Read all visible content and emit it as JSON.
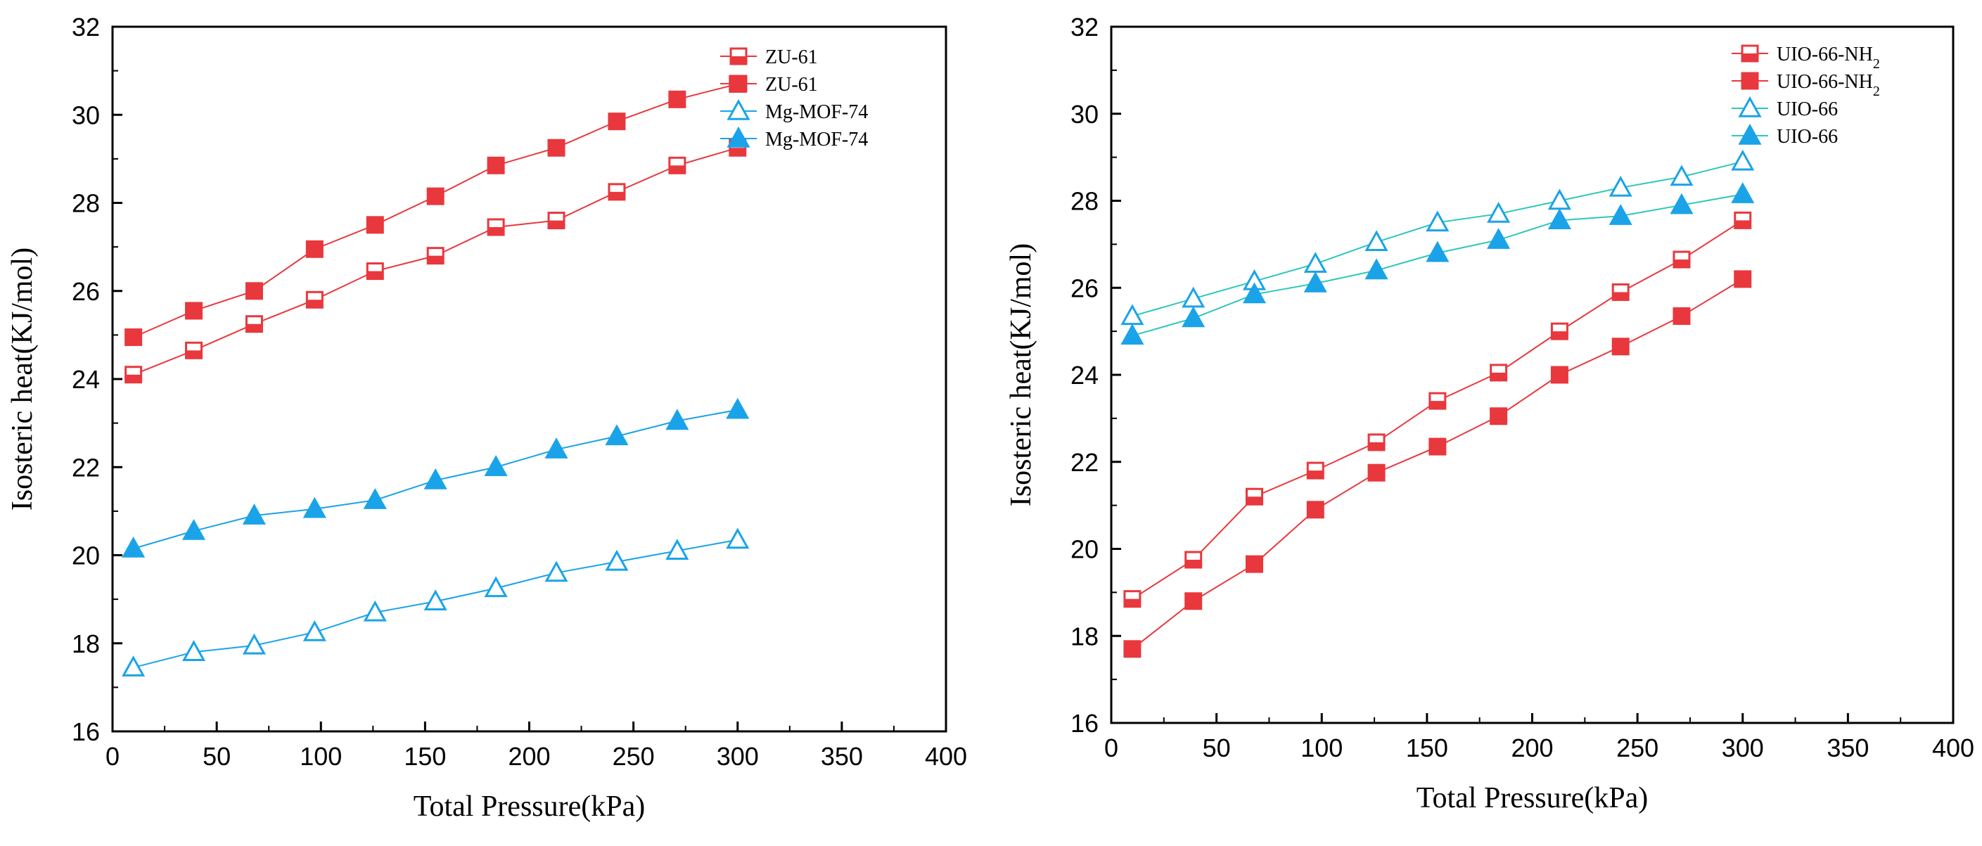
{
  "chart_data": [
    {
      "type": "line",
      "xlabel": "Total Pressure(kPa)",
      "ylabel": "Isosteric heat(KJ/mol)",
      "xlim": [
        0,
        400
      ],
      "ylim": [
        16,
        32
      ],
      "xticks": [
        0,
        50,
        100,
        150,
        200,
        250,
        300,
        350,
        400
      ],
      "yticks": [
        16,
        18,
        20,
        22,
        24,
        26,
        28,
        30,
        32
      ],
      "grid": false,
      "legend_position": "top-right",
      "x": [
        10,
        39,
        68,
        97,
        126,
        155,
        184,
        213,
        242,
        271,
        300
      ],
      "series": [
        {
          "name": "ZU-61",
          "marker": "square-half",
          "color": "#e8383d",
          "values": [
            24.1,
            24.65,
            25.25,
            25.8,
            26.45,
            26.8,
            27.45,
            27.6,
            28.25,
            28.85,
            29.25
          ]
        },
        {
          "name": "ZU-61",
          "marker": "square",
          "color": "#e8383d",
          "values": [
            24.95,
            25.55,
            26.0,
            26.95,
            27.5,
            28.15,
            28.85,
            29.25,
            29.85,
            30.35,
            30.7
          ]
        },
        {
          "name": "Mg-MOF-74",
          "marker": "triangle-open",
          "color": "#1aa3e8",
          "values": [
            17.45,
            17.8,
            17.95,
            18.25,
            18.7,
            18.95,
            19.25,
            19.6,
            19.85,
            20.1,
            20.35
          ]
        },
        {
          "name": "Mg-MOF-74",
          "marker": "triangle",
          "color": "#1aa3e8",
          "values": [
            20.15,
            20.55,
            20.9,
            21.05,
            21.25,
            21.7,
            22.0,
            22.4,
            22.7,
            23.05,
            23.3
          ]
        }
      ]
    },
    {
      "type": "line",
      "xlabel": "Total Pressure(kPa)",
      "ylabel": "Isosteric heat(KJ/mol)",
      "xlim": [
        0,
        400
      ],
      "ylim": [
        16,
        32
      ],
      "xticks": [
        0,
        50,
        100,
        150,
        200,
        250,
        300,
        350,
        400
      ],
      "yticks": [
        16,
        18,
        20,
        22,
        24,
        26,
        28,
        30,
        32
      ],
      "grid": false,
      "legend_position": "top-right",
      "x": [
        10,
        39,
        68,
        97,
        126,
        155,
        184,
        213,
        242,
        271,
        300
      ],
      "series": [
        {
          "name": "UIO-66-NH",
          "name_sub": "2",
          "marker": "square-half",
          "color": "#e8383d",
          "values": [
            18.85,
            19.75,
            21.2,
            21.8,
            22.45,
            23.4,
            24.05,
            25.0,
            25.9,
            26.65,
            27.55
          ]
        },
        {
          "name": "UIO-66-NH",
          "name_sub": "2",
          "marker": "square",
          "color": "#e8383d",
          "values": [
            17.7,
            18.8,
            19.65,
            20.9,
            21.75,
            22.35,
            23.05,
            24.0,
            24.65,
            25.35,
            26.2
          ]
        },
        {
          "name": "UIO-66",
          "marker": "triangle-open",
          "color": "#1aa3e8",
          "line_color": "#2ac8b8",
          "values": [
            25.35,
            25.75,
            26.15,
            26.55,
            27.05,
            27.5,
            27.7,
            28.0,
            28.3,
            28.55,
            28.9
          ]
        },
        {
          "name": "UIO-66",
          "marker": "triangle",
          "color": "#1aa3e8",
          "line_color": "#2ac8b8",
          "values": [
            24.9,
            25.3,
            25.85,
            26.1,
            26.4,
            26.8,
            27.1,
            27.55,
            27.65,
            27.9,
            28.15
          ]
        }
      ]
    }
  ]
}
